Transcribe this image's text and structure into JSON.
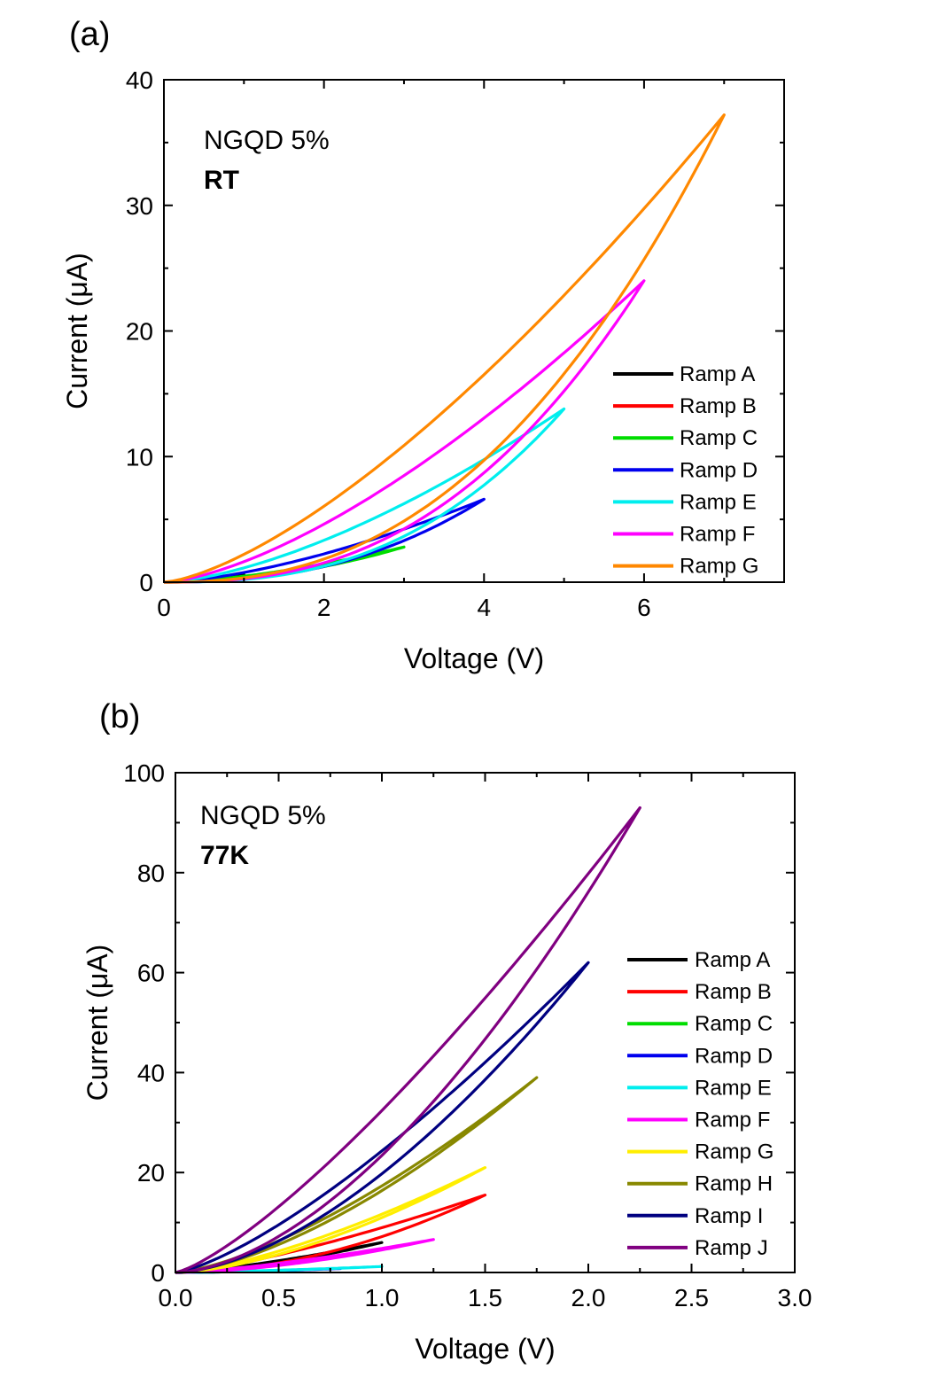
{
  "panels": {
    "a": "(a)",
    "b": "(b)"
  },
  "chart_data": [
    {
      "type": "line",
      "panel": "a",
      "xlabel": "Voltage (V)",
      "ylabel": "Current (μA)",
      "xlim": [
        0,
        7.75
      ],
      "ylim": [
        0,
        40
      ],
      "xticks": [
        0,
        2,
        4,
        6
      ],
      "yticks": [
        0,
        10,
        20,
        30,
        40
      ],
      "xtick_labels": [
        "0",
        "2",
        "4",
        "6"
      ],
      "ytick_labels": [
        "0",
        "10",
        "20",
        "30",
        "40"
      ],
      "annotations": [
        {
          "text": "NGQD 5%",
          "bold": false
        },
        {
          "text": "RT",
          "bold": true
        }
      ],
      "legend_position": "lower-right",
      "series": [
        {
          "name": "Ramp A",
          "color": "#000000",
          "vmax": 1.0,
          "imax": 0.6,
          "forward_exp": 2.0,
          "return_exp": 1.6
        },
        {
          "name": "Ramp B",
          "color": "#ff0000",
          "vmax": 2.0,
          "imax": 1.3,
          "forward_exp": 2.0,
          "return_exp": 1.6
        },
        {
          "name": "Ramp C",
          "color": "#00dd00",
          "vmax": 3.0,
          "imax": 2.8,
          "forward_exp": 2.0,
          "return_exp": 1.6
        },
        {
          "name": "Ramp D",
          "color": "#0000ee",
          "vmax": 4.0,
          "imax": 6.6,
          "forward_exp": 2.4,
          "return_exp": 1.55
        },
        {
          "name": "Ramp E",
          "color": "#00eeee",
          "vmax": 5.0,
          "imax": 13.8,
          "forward_exp": 2.6,
          "return_exp": 1.55
        },
        {
          "name": "Ramp F",
          "color": "#ff00ff",
          "vmax": 6.0,
          "imax": 24.0,
          "forward_exp": 2.5,
          "return_exp": 1.5
        },
        {
          "name": "Ramp G",
          "color": "#ff8800",
          "vmax": 7.0,
          "imax": 37.2,
          "forward_exp": 2.4,
          "return_exp": 1.45
        }
      ]
    },
    {
      "type": "line",
      "panel": "b",
      "xlabel": "Voltage (V)",
      "ylabel": "Current (μA)",
      "xlim": [
        0,
        3.0
      ],
      "ylim": [
        0,
        100
      ],
      "xticks": [
        0,
        0.5,
        1.0,
        1.5,
        2.0,
        2.5,
        3.0
      ],
      "yticks": [
        0,
        20,
        40,
        60,
        80,
        100
      ],
      "xtick_labels": [
        "0.0",
        "0.5",
        "1.0",
        "1.5",
        "2.0",
        "2.5",
        "3.0"
      ],
      "ytick_labels": [
        "0",
        "20",
        "40",
        "60",
        "80",
        "100"
      ],
      "annotations": [
        {
          "text": "NGQD 5%",
          "bold": false
        },
        {
          "text": "77K",
          "bold": true
        }
      ],
      "legend_position": "right",
      "series": [
        {
          "name": "Ramp A",
          "color": "#000000",
          "vmax": 1.0,
          "imax": 6.0,
          "forward_exp": 1.6,
          "return_exp": 1.35
        },
        {
          "name": "Ramp B",
          "color": "#ff0000",
          "vmax": 1.5,
          "imax": 15.5,
          "forward_exp": 1.9,
          "return_exp": 1.35
        },
        {
          "name": "Ramp C",
          "color": "#00dd00",
          "vmax": 0.6,
          "imax": 0.5,
          "forward_exp": 1.6,
          "return_exp": 1.4
        },
        {
          "name": "Ramp D",
          "color": "#0000ee",
          "vmax": 0.8,
          "imax": 0.8,
          "forward_exp": 1.6,
          "return_exp": 1.4
        },
        {
          "name": "Ramp E",
          "color": "#00eeee",
          "vmax": 1.0,
          "imax": 1.2,
          "forward_exp": 1.5,
          "return_exp": 1.4
        },
        {
          "name": "Ramp F",
          "color": "#ff00ff",
          "vmax": 1.25,
          "imax": 6.6,
          "forward_exp": 1.7,
          "return_exp": 1.4
        },
        {
          "name": "Ramp G",
          "color": "#ffee00",
          "vmax": 1.5,
          "imax": 21.0,
          "forward_exp": 1.6,
          "return_exp": 1.45
        },
        {
          "name": "Ramp H",
          "color": "#888800",
          "vmax": 1.75,
          "imax": 39.0,
          "forward_exp": 1.55,
          "return_exp": 1.45
        },
        {
          "name": "Ramp I",
          "color": "#000080",
          "vmax": 2.0,
          "imax": 62.0,
          "forward_exp": 1.65,
          "return_exp": 1.35
        },
        {
          "name": "Ramp J",
          "color": "#800080",
          "vmax": 2.25,
          "imax": 93.0,
          "forward_exp": 1.7,
          "return_exp": 1.3
        }
      ]
    }
  ]
}
